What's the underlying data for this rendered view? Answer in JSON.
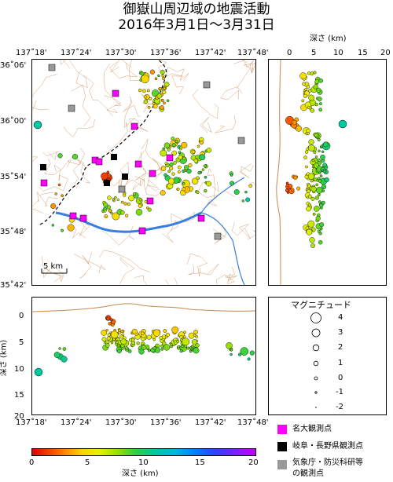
{
  "title": {
    "line1": "御嶽山周辺域の地震活動",
    "line2": "2016年3月1日～3月31日"
  },
  "map": {
    "x_ticks": [
      "137˚18'",
      "137˚24'",
      "137˚30'",
      "137˚36'",
      "137˚42'",
      "137˚48'"
    ],
    "y_ticks": [
      "36˚06'",
      "36˚00'",
      "35˚54'",
      "35˚48'",
      "35˚42'"
    ],
    "scale_label": "5 km"
  },
  "depth_section_right": {
    "axis_label": "深さ (km)",
    "ticks": [
      "0",
      "5",
      "10",
      "15",
      "20"
    ]
  },
  "depth_section_bottom": {
    "axis_label": "深さ (km)",
    "y_ticks": [
      "0",
      "5",
      "10",
      "15",
      "20"
    ],
    "x_ticks": [
      "137˚18'",
      "137˚24'",
      "137˚30'",
      "137˚36'",
      "137˚42'",
      "137˚48'"
    ]
  },
  "magnitude_legend": {
    "title": "マグニチュード",
    "items": [
      "4",
      "3",
      "2",
      "1",
      "0",
      "-1",
      "-2"
    ]
  },
  "station_legend": {
    "nagoya": "名大観測点",
    "gifu_nagano": "岐阜・長野県観測点",
    "jma_nied_line1": "気象庁・防災科研等",
    "jma_nied_line2": "の観測点"
  },
  "depth_colorbar": {
    "ticks": [
      "0",
      "5",
      "10",
      "15",
      "20"
    ],
    "label": "深さ (km)"
  },
  "colors": {
    "station_nagoya": "#ff00ff",
    "station_gifu_nagano": "#000000",
    "station_jma_nied": "#999999",
    "contour": "#c88850",
    "river": "#3a7de0",
    "topography_profile": "#c88850"
  }
}
